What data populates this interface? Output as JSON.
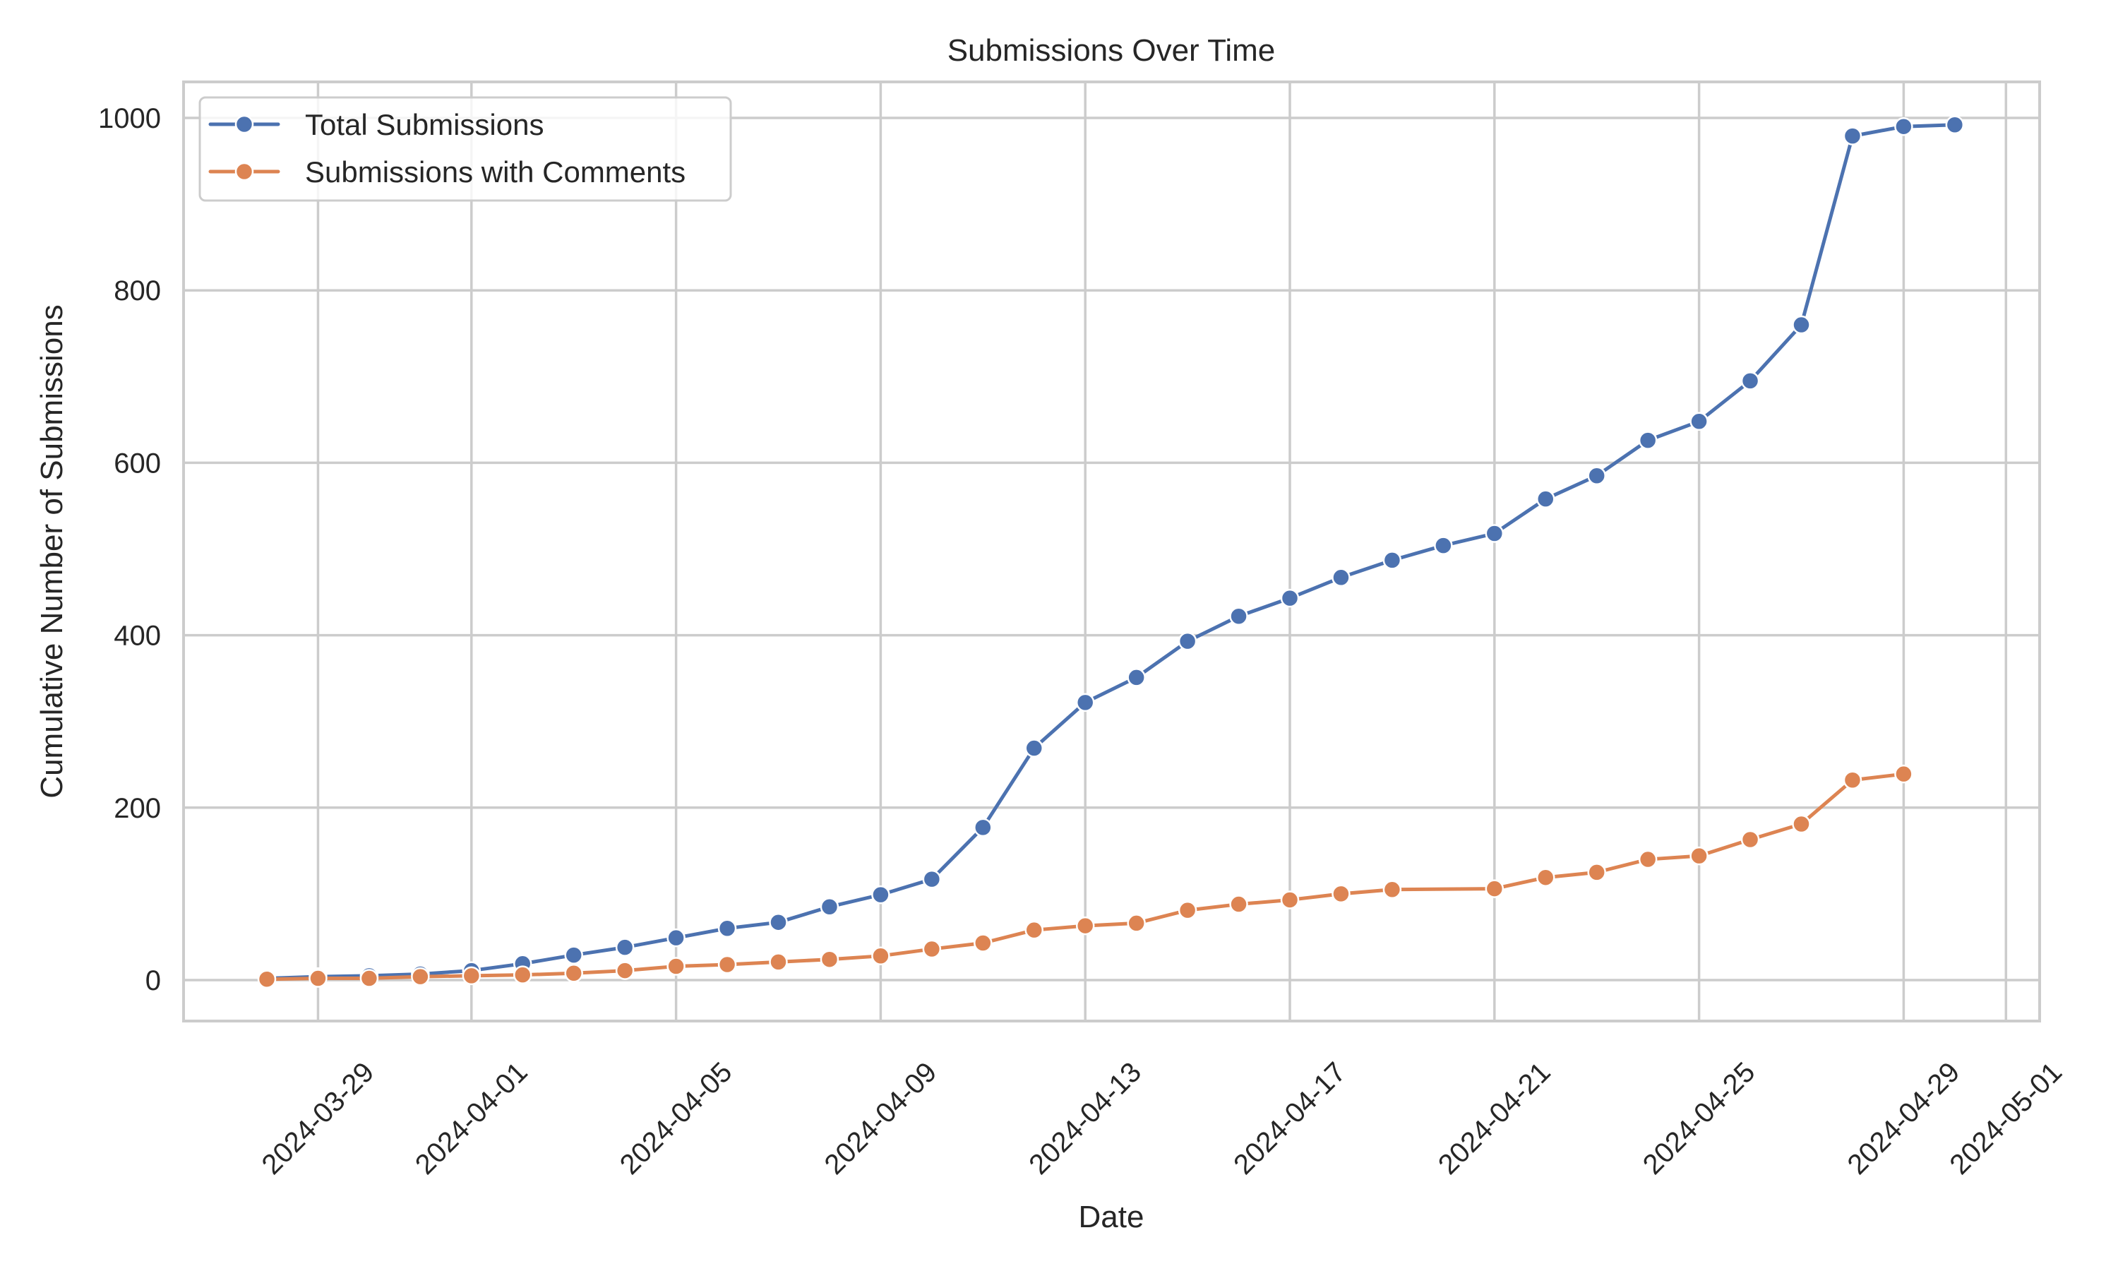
{
  "chart_data": {
    "type": "line",
    "title": "Submissions Over Time",
    "xlabel": "Date",
    "ylabel": "Cumulative Number of Submissions",
    "ylim": [
      -48,
      1045
    ],
    "yticks": [
      0,
      200,
      400,
      600,
      800,
      1000
    ],
    "xlim": [
      "2024-03-26",
      "2024-05-02"
    ],
    "xticks": [
      "2024-03-29",
      "2024-04-01",
      "2024-04-05",
      "2024-04-09",
      "2024-04-13",
      "2024-04-17",
      "2024-04-21",
      "2024-04-25",
      "2024-04-29",
      "2024-05-01"
    ],
    "x_tick_rotation": 45,
    "grid": true,
    "legend_position": "upper left",
    "series": [
      {
        "name": "Total Submissions",
        "color": "#4c72b0",
        "marker": "circle",
        "points": [
          [
            "2024-03-28",
            2
          ],
          [
            "2024-03-29",
            4
          ],
          [
            "2024-03-30",
            5
          ],
          [
            "2024-03-31",
            7
          ],
          [
            "2024-04-01",
            11
          ],
          [
            "2024-04-02",
            19
          ],
          [
            "2024-04-03",
            29
          ],
          [
            "2024-04-04",
            38
          ],
          [
            "2024-04-05",
            49
          ],
          [
            "2024-04-06",
            60
          ],
          [
            "2024-04-07",
            67
          ],
          [
            "2024-04-08",
            85
          ],
          [
            "2024-04-09",
            99
          ],
          [
            "2024-04-10",
            117
          ],
          [
            "2024-04-11",
            177
          ],
          [
            "2024-04-12",
            269
          ],
          [
            "2024-04-13",
            322
          ],
          [
            "2024-04-14",
            351
          ],
          [
            "2024-04-15",
            393
          ],
          [
            "2024-04-16",
            422
          ],
          [
            "2024-04-17",
            443
          ],
          [
            "2024-04-18",
            467
          ],
          [
            "2024-04-19",
            487
          ],
          [
            "2024-04-20",
            504
          ],
          [
            "2024-04-21",
            518
          ],
          [
            "2024-04-22",
            558
          ],
          [
            "2024-04-23",
            585
          ],
          [
            "2024-04-24",
            626
          ],
          [
            "2024-04-25",
            648
          ],
          [
            "2024-04-26",
            695
          ],
          [
            "2024-04-27",
            760
          ],
          [
            "2024-04-28",
            979
          ],
          [
            "2024-04-29",
            990
          ],
          [
            "2024-04-30",
            992
          ]
        ]
      },
      {
        "name": "Submissions with Comments",
        "color": "#dd8452",
        "marker": "circle",
        "points": [
          [
            "2024-03-28",
            1
          ],
          [
            "2024-03-29",
            2
          ],
          [
            "2024-03-30",
            2
          ],
          [
            "2024-03-31",
            4
          ],
          [
            "2024-04-01",
            5
          ],
          [
            "2024-04-02",
            6
          ],
          [
            "2024-04-03",
            8
          ],
          [
            "2024-04-04",
            11
          ],
          [
            "2024-04-05",
            16
          ],
          [
            "2024-04-06",
            18
          ],
          [
            "2024-04-07",
            21
          ],
          [
            "2024-04-08",
            24
          ],
          [
            "2024-04-09",
            28
          ],
          [
            "2024-04-10",
            36
          ],
          [
            "2024-04-11",
            43
          ],
          [
            "2024-04-12",
            58
          ],
          [
            "2024-04-13",
            63
          ],
          [
            "2024-04-14",
            66
          ],
          [
            "2024-04-15",
            81
          ],
          [
            "2024-04-16",
            88
          ],
          [
            "2024-04-17",
            93
          ],
          [
            "2024-04-18",
            100
          ],
          [
            "2024-04-19",
            105
          ],
          [
            "2024-04-21",
            106
          ],
          [
            "2024-04-22",
            119
          ],
          [
            "2024-04-23",
            125
          ],
          [
            "2024-04-24",
            140
          ],
          [
            "2024-04-25",
            144
          ],
          [
            "2024-04-26",
            163
          ],
          [
            "2024-04-27",
            181
          ],
          [
            "2024-04-28",
            232
          ],
          [
            "2024-04-29",
            239
          ]
        ]
      }
    ]
  },
  "style": {
    "grid_color": "#cccccc",
    "spine_color": "#cccccc",
    "text_color": "#262626",
    "background": "#ffffff"
  }
}
